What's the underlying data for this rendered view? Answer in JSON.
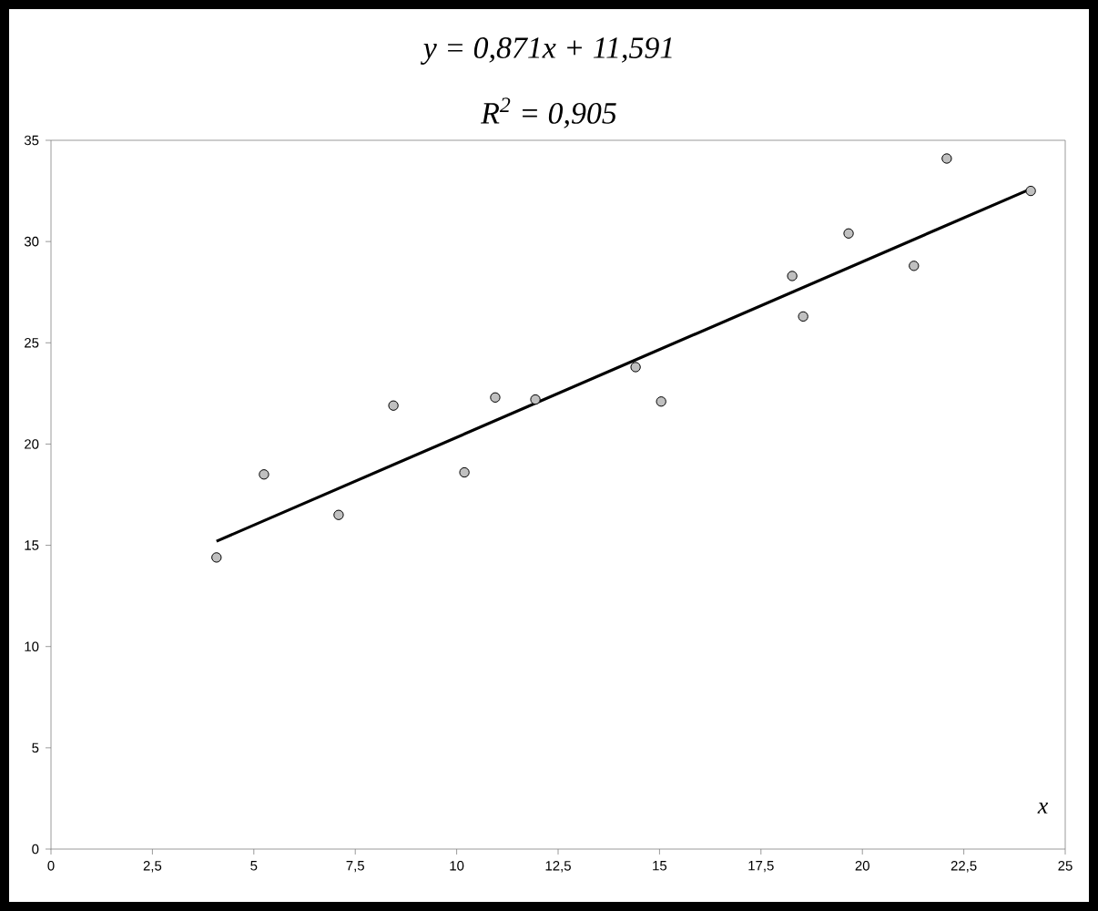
{
  "chart_data": {
    "type": "scatter",
    "title": "y = 0,871x + 11,591",
    "subtitle": "R$^{2}$ = 0,905",
    "xlabel": "x",
    "xlim": [
      0,
      25
    ],
    "ylim": [
      0,
      35
    ],
    "marker": "circle",
    "xticks": [
      0,
      {
        "value": 2.5,
        "label": "2,5"
      },
      5,
      {
        "value": 7.5,
        "label": "7,5"
      },
      10,
      {
        "value": 12.5,
        "label": "12,5"
      },
      15,
      {
        "value": 17.5,
        "label": "17,5"
      },
      20,
      {
        "value": 22.5,
        "label": "22,5"
      },
      25
    ],
    "yticks": [
      0,
      5,
      10,
      15,
      20,
      25,
      30,
      35
    ],
    "series": [
      {
        "color": "#c0c0c0",
        "x": [
          4.08,
          5.25,
          7.09,
          8.44,
          10.19,
          10.95,
          11.94,
          14.41,
          15.04,
          18.27,
          18.54,
          19.66,
          21.27,
          22.08,
          24.15
        ],
        "values": [
          14.4,
          18.5,
          16.5,
          21.9,
          18.6,
          22.3,
          22.2,
          23.8,
          22.1,
          28.3,
          26.3,
          30.4,
          28.8,
          34.1,
          32.5
        ]
      },
      {
        "type": "line",
        "marker": "none",
        "color": "#000000",
        "x": [
          4.08,
          24.15
        ],
        "values": [
          15.2,
          32.6
        ]
      }
    ]
  }
}
